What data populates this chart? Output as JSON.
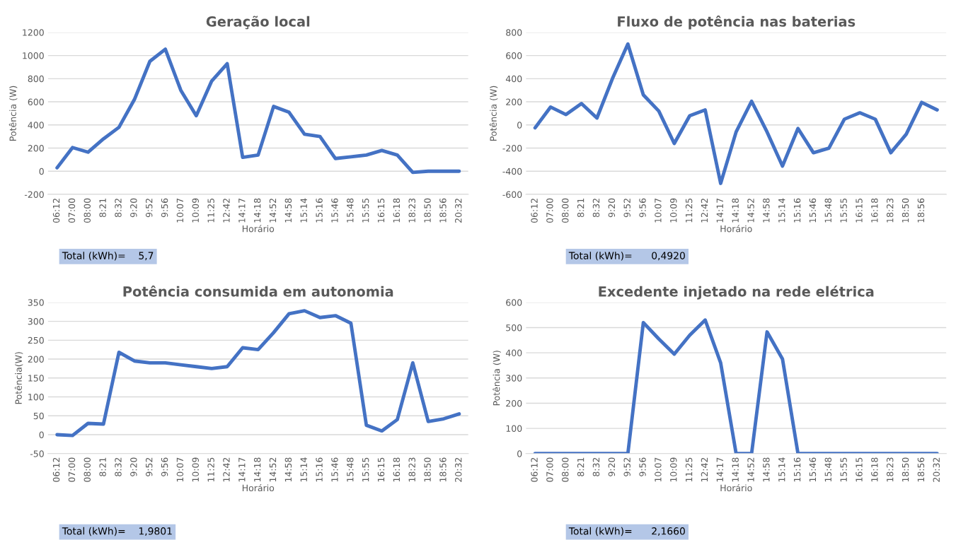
{
  "chart_data": [
    {
      "type": "line",
      "title": "Geração local",
      "xlabel": "Horário",
      "ylabel": "Potência (W)",
      "categories": [
        "06:12",
        "07:00",
        "08:00",
        "8:21",
        "8:32",
        "9:20",
        "9:52",
        "9:56",
        "10:07",
        "10:09",
        "11:25",
        "12:42",
        "14:17",
        "14:18",
        "14:52",
        "14:58",
        "15:14",
        "15:16",
        "15:46",
        "15:48",
        "15:55",
        "16:15",
        "16:18",
        "18:23",
        "18:50",
        "18:56",
        "20:32"
      ],
      "series": [
        {
          "color": "#4472c4",
          "values": [
            30,
            205,
            165,
            280,
            380,
            620,
            950,
            1055,
            700,
            480,
            780,
            930,
            120,
            140,
            560,
            510,
            320,
            300,
            110,
            125,
            140,
            180,
            140,
            -10,
            0,
            0,
            0
          ]
        }
      ],
      "ylim": [
        -200,
        1200
      ],
      "yticks": [
        -200,
        0,
        200,
        400,
        600,
        800,
        1000,
        1200
      ],
      "grid": "y",
      "annotations": [
        "Total (kWh)=    5,7"
      ]
    },
    {
      "type": "line",
      "title": "Fluxo de potência nas baterias",
      "xlabel": "Horário",
      "ylabel": "Potência (W)",
      "categories": [
        "06:12",
        "07:00",
        "08:00",
        "8:21",
        "8:32",
        "9:20",
        "9:52",
        "9:56",
        "10:07",
        "10:09",
        "11:25",
        "12:42",
        "14:17",
        "14:18",
        "14:52",
        "14:58",
        "15:14",
        "15:16",
        "15:46",
        "15:48",
        "15:55",
        "16:15",
        "16:18",
        "18:23",
        "18:50",
        "18:56",
        null
      ],
      "series": [
        {
          "color": "#4472c4",
          "values": [
            -25,
            155,
            90,
            185,
            60,
            400,
            700,
            260,
            120,
            -160,
            80,
            130,
            -505,
            -60,
            205,
            -60,
            -355,
            -30,
            -240,
            -200,
            50,
            105,
            50,
            -240,
            -80,
            195,
            130
          ]
        }
      ],
      "ylim": [
        -600,
        800
      ],
      "yticks": [
        -600,
        -400,
        -200,
        0,
        200,
        400,
        600,
        800
      ],
      "grid": "y",
      "annotations": [
        "Total (kWh)=      0,4920"
      ]
    },
    {
      "type": "line",
      "title": "Potência consumida em autonomia",
      "xlabel": "Horário",
      "ylabel": "Potência(W)",
      "categories": [
        "06:12",
        "07:00",
        "08:00",
        "8:21",
        "8:32",
        "9:20",
        "9:52",
        "9:56",
        "10:07",
        "10:09",
        "11:25",
        "12:42",
        "14:17",
        "14:18",
        "14:52",
        "14:58",
        "15:14",
        "15:16",
        "15:46",
        "15:48",
        "15:55",
        "16:15",
        "16:18",
        "18:23",
        "18:50",
        "18:56",
        "20:32"
      ],
      "series": [
        {
          "color": "#4472c4",
          "values": [
            0,
            -2,
            30,
            28,
            218,
            195,
            190,
            190,
            185,
            180,
            175,
            180,
            230,
            225,
            270,
            320,
            328,
            310,
            315,
            295,
            25,
            10,
            40,
            190,
            35,
            42,
            55
          ]
        }
      ],
      "ylim": [
        -50,
        350
      ],
      "yticks": [
        -50,
        0,
        50,
        100,
        150,
        200,
        250,
        300,
        350
      ],
      "grid": "y",
      "annotations": [
        "Total (kWh)=    1,9801"
      ]
    },
    {
      "type": "line",
      "title": "Excedente injetado na rede elétrica",
      "xlabel": "Horário",
      "ylabel": "Potência (W)",
      "categories": [
        "06:12",
        "07:00",
        "08:00",
        "8:21",
        "8:32",
        "9:20",
        "9:52",
        "9:56",
        "10:07",
        "10:09",
        "11:25",
        "12:42",
        "14:17",
        "14:18",
        "14:52",
        "14:58",
        "15:14",
        "15:16",
        "15:46",
        "15:48",
        "15:55",
        "16:15",
        "16:18",
        "18:23",
        "18:50",
        "18:56",
        "20:32"
      ],
      "series": [
        {
          "color": "#4472c4",
          "values": [
            0,
            0,
            0,
            0,
            0,
            0,
            0,
            520,
            455,
            395,
            470,
            530,
            360,
            0,
            0,
            483,
            375,
            0,
            0,
            0,
            0,
            0,
            0,
            0,
            0,
            0,
            0
          ]
        }
      ],
      "ylim": [
        0,
        600
      ],
      "yticks": [
        0,
        100,
        200,
        300,
        400,
        500,
        600
      ],
      "grid": "y",
      "annotations": [
        "Total (kWh)=      2,1660"
      ]
    }
  ]
}
